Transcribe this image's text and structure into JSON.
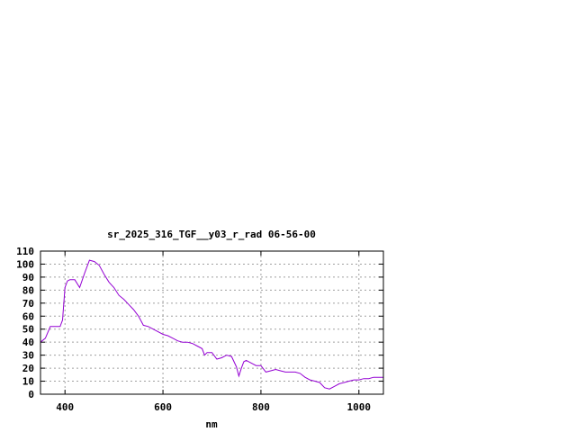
{
  "chart_data": {
    "type": "line",
    "title": "sr_2025_316_TGF__y03_r_rad 06-56-00",
    "xlabel": "nm",
    "ylabel": "",
    "xlim": [
      350,
      1050
    ],
    "ylim": [
      0,
      110
    ],
    "x_ticks": [
      400,
      600,
      800,
      1000
    ],
    "y_ticks": [
      0,
      10,
      20,
      30,
      40,
      50,
      60,
      70,
      80,
      90,
      100,
      110
    ],
    "grid": true,
    "series": [
      {
        "color": "#9400d3",
        "x": [
          350,
          360,
          370,
          380,
          390,
          395,
          400,
          405,
          410,
          420,
          430,
          440,
          450,
          460,
          470,
          480,
          490,
          500,
          510,
          520,
          530,
          540,
          550,
          560,
          570,
          580,
          590,
          600,
          610,
          620,
          630,
          640,
          650,
          660,
          670,
          680,
          685,
          690,
          700,
          710,
          720,
          730,
          740,
          750,
          755,
          760,
          765,
          770,
          780,
          790,
          800,
          810,
          820,
          830,
          840,
          850,
          860,
          870,
          880,
          890,
          900,
          910,
          920,
          930,
          940,
          950,
          960,
          970,
          980,
          990,
          1000,
          1010,
          1020,
          1030,
          1040,
          1050
        ],
        "y": [
          40,
          43,
          52,
          52,
          52,
          57,
          82,
          87,
          88,
          88,
          82,
          93,
          103,
          102,
          99,
          92,
          86,
          82,
          76,
          73,
          69,
          65,
          60,
          53,
          52,
          50,
          48,
          46,
          45,
          43,
          41,
          40,
          40,
          39,
          37,
          35,
          30,
          32,
          32,
          27,
          28,
          30,
          29,
          21,
          14,
          20,
          25,
          26,
          24,
          22,
          22,
          17,
          18,
          19,
          18,
          17,
          17,
          17,
          16,
          13,
          11,
          10,
          9,
          5,
          4,
          6,
          8,
          9,
          10,
          11,
          11,
          12,
          12,
          13,
          13,
          13
        ]
      }
    ]
  }
}
